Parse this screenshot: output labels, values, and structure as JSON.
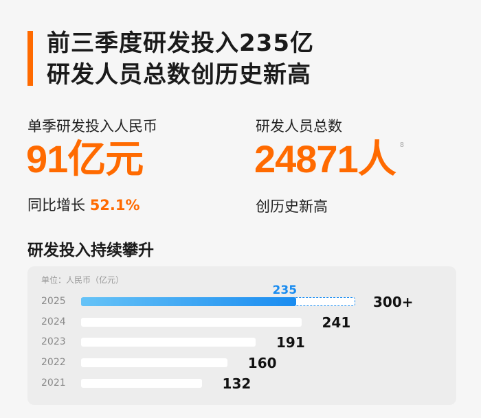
{
  "header": {
    "line1": "前三季度研发投入235亿",
    "line2": "研发人员总数创历史新高"
  },
  "stat1": {
    "label": "单季研发投入人民币",
    "value": "91亿元",
    "growth_label": "同比增长",
    "growth_value": "52.1%"
  },
  "stat2": {
    "label": "研发人员总数",
    "value": "24871人",
    "footnote": "8",
    "note": "创历史新高"
  },
  "section_title": "研发投入持续攀升",
  "accent_color": "#ff6a00",
  "chart_data": {
    "type": "bar",
    "orientation": "horizontal",
    "unit_label": "单位：人民币（亿元）",
    "categories": [
      "2025",
      "2024",
      "2023",
      "2022",
      "2021"
    ],
    "values": [
      235,
      241,
      191,
      160,
      132
    ],
    "labels": [
      "300+",
      "241",
      "191",
      "160",
      "132"
    ],
    "highlight": {
      "category": "2025",
      "actual": 235,
      "actual_label": "235",
      "target": 300,
      "color": "#1a8cf0"
    }
  }
}
